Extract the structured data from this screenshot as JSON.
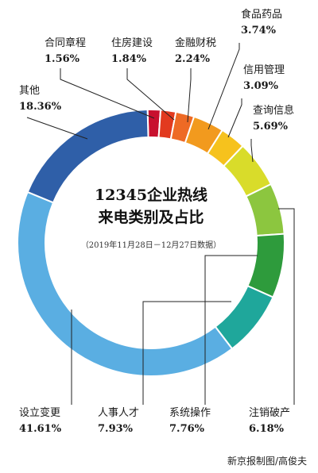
{
  "chart_data": {
    "type": "pie",
    "title": "12345企业热线",
    "title_line2": "来电类别及占比",
    "subtitle": "（2019年11月28日－12月27日数据）",
    "start_angle_deg": -1.5,
    "slices": [
      {
        "label": "合同章程",
        "value_text": "1.56%",
        "value": 1.56,
        "color": "#c8102e"
      },
      {
        "label": "住房建设",
        "value_text": "1.84%",
        "value": 1.84,
        "color": "#e23a1f"
      },
      {
        "label": "金融财税",
        "value_text": "2.24%",
        "value": 2.24,
        "color": "#ee6a25"
      },
      {
        "label": "食品药品",
        "value_text": "3.74%",
        "value": 3.74,
        "color": "#f29a1e"
      },
      {
        "label": "信用管理",
        "value_text": "3.09%",
        "value": 3.09,
        "color": "#f6c21d"
      },
      {
        "label": "查询信息",
        "value_text": "5.69%",
        "value": 5.69,
        "color": "#d9dc2a"
      },
      {
        "label": "注销破产",
        "value_text": "6.18%",
        "value": 6.18,
        "color": "#8cc63f"
      },
      {
        "label": "系统操作",
        "value_text": "7.76%",
        "value": 7.76,
        "color": "#2e9b3c"
      },
      {
        "label": "人事人才",
        "value_text": "7.93%",
        "value": 7.93,
        "color": "#1fa79b"
      },
      {
        "label": "设立变更",
        "value_text": "41.61%",
        "value": 41.61,
        "color": "#5aaee2"
      },
      {
        "label": "其他",
        "value_text": "18.36%",
        "value": 18.36,
        "color": "#2f5fa8"
      }
    ]
  },
  "credit": "新京报制图/高俊夫"
}
